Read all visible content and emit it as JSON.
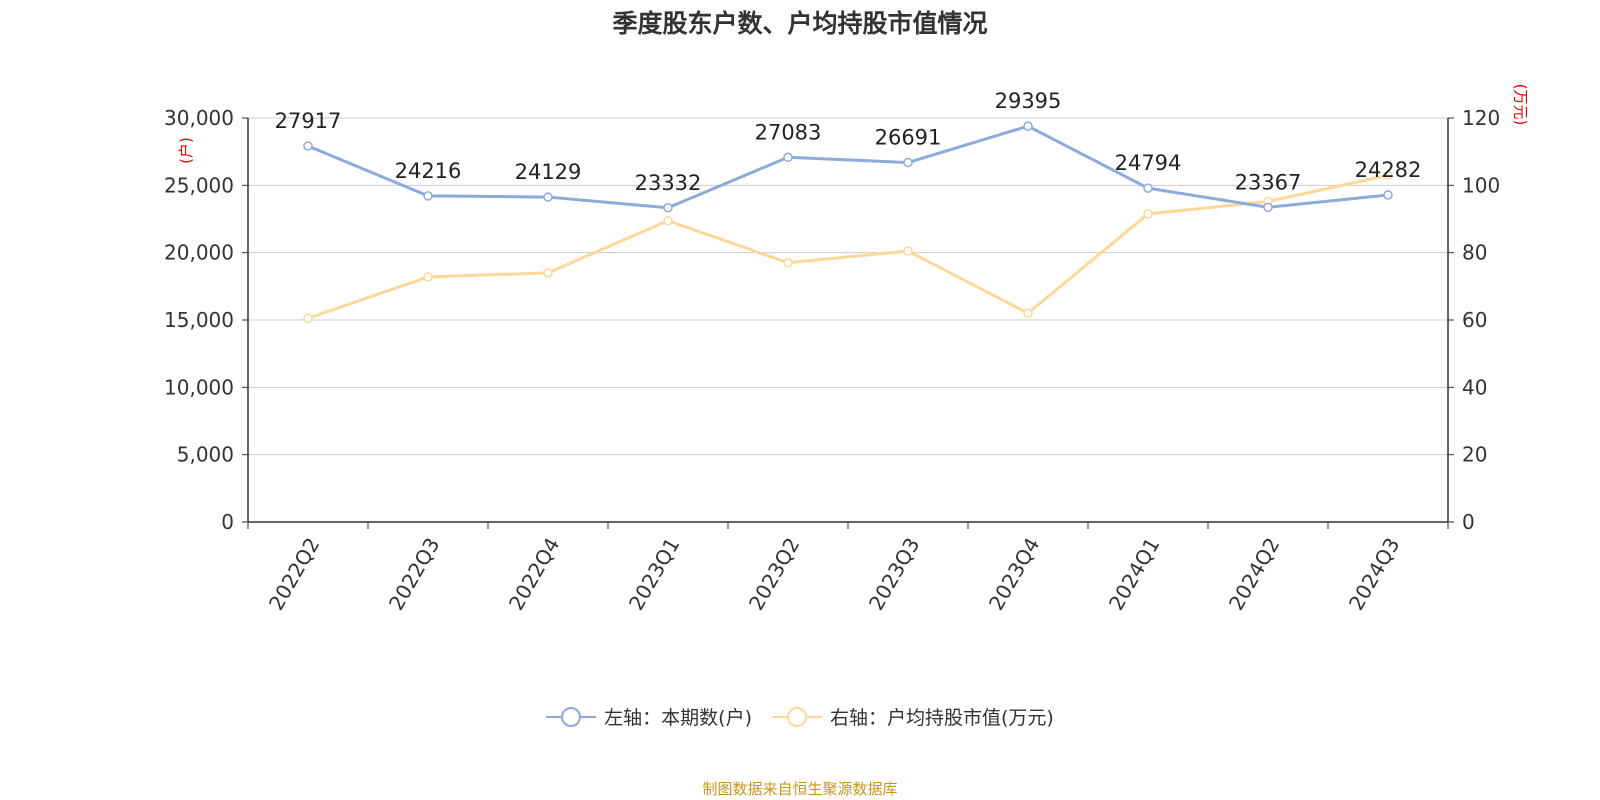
{
  "title": "季度股东户数、户均持股市值情况",
  "source": "制图数据来自恒生聚源数据库",
  "colors": {
    "left_series": "#8eaadb",
    "right_series": "#fdd89a",
    "unit_text": "#e60000",
    "source_text": "#c8961e"
  },
  "chart_data": {
    "type": "line",
    "categories": [
      "2022Q2",
      "2022Q3",
      "2022Q4",
      "2023Q1",
      "2023Q2",
      "2023Q3",
      "2023Q4",
      "2024Q1",
      "2024Q2",
      "2024Q3"
    ],
    "left_axis": {
      "unit": "(户)",
      "range": [
        0,
        30000
      ],
      "ticks": [
        "0",
        "5,000",
        "10,000",
        "15,000",
        "20,000",
        "25,000",
        "30,000"
      ]
    },
    "right_axis": {
      "unit": "(万元)",
      "range": [
        0,
        120
      ],
      "ticks": [
        "0",
        "20",
        "40",
        "60",
        "80",
        "100",
        "120"
      ]
    },
    "series": [
      {
        "name": "左轴：本期数(户)",
        "axis": "left",
        "values": [
          27917,
          24216,
          24129,
          23332,
          27083,
          26691,
          29395,
          24794,
          23367,
          24282
        ],
        "labels": [
          "27917",
          "24216",
          "24129",
          "23332",
          "27083",
          "26691",
          "29395",
          "24794",
          "23367",
          "24282"
        ]
      },
      {
        "name": "右轴：户均持股市值(万元)",
        "axis": "right",
        "values": [
          60.5,
          72.8,
          74.0,
          89.5,
          77.0,
          80.5,
          62.0,
          91.5,
          95.2,
          103.0
        ]
      }
    ],
    "grid": true,
    "legend_position": "bottom"
  }
}
